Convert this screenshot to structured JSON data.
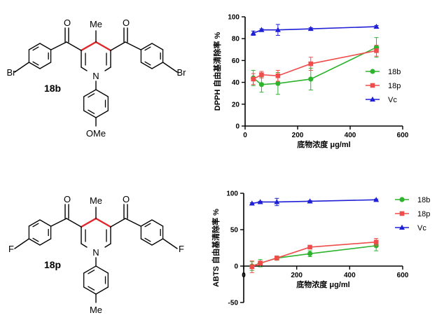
{
  "molecules": [
    {
      "id": "18b",
      "label": "18b",
      "methyl": "Me",
      "left_sub": "Br",
      "right_sub": "Br",
      "n_label": "N",
      "o1": "O",
      "o2": "O",
      "aryl_sub": "OMe"
    },
    {
      "id": "18p",
      "label": "18p",
      "methyl": "Me",
      "left_sub": "F",
      "right_sub": "F",
      "n_label": "N",
      "o1": "O",
      "o2": "O",
      "aryl_sub": "Me"
    }
  ],
  "colors": {
    "highlight_bond": "#e0262b",
    "series_18b": "#2db32d",
    "series_18p": "#ef4c4c",
    "series_vc": "#1f1fd6"
  },
  "chart_data": [
    {
      "type": "line",
      "ylabel": "DPPH 自由基清除率 %",
      "xlabel": "底物浓度 μg/ml",
      "xlim": [
        0,
        600
      ],
      "ylim": [
        0,
        100
      ],
      "xticks": [
        0,
        200,
        400,
        600
      ],
      "yticks": [
        0,
        20,
        40,
        60,
        80,
        100
      ],
      "legend_position": "right",
      "x": [
        31.25,
        62.5,
        125,
        250,
        500
      ],
      "series": [
        {
          "name": "18b",
          "marker": "circle",
          "values": [
            44,
            38,
            39,
            43,
            72
          ],
          "errors": [
            7,
            7,
            10,
            10,
            9
          ]
        },
        {
          "name": "18p",
          "marker": "square",
          "values": [
            43,
            47,
            46,
            57,
            69
          ],
          "errors": [
            5,
            3,
            5,
            6,
            5
          ]
        },
        {
          "name": "Vc",
          "marker": "triangle",
          "values": [
            85,
            88,
            88,
            89,
            91
          ],
          "errors": [
            2,
            1,
            5,
            1,
            1
          ]
        }
      ]
    },
    {
      "type": "line",
      "ylabel": "ABTS 自由基清除率 %",
      "xlabel": "底物浓度 μg/ml",
      "xlim": [
        0,
        600
      ],
      "ylim": [
        -50,
        100
      ],
      "xticks": [
        0,
        200,
        400,
        600
      ],
      "yticks": [
        -50,
        0,
        50,
        100
      ],
      "legend_position": "right",
      "x": [
        31.25,
        62.5,
        125,
        250,
        500
      ],
      "series": [
        {
          "name": "18b",
          "marker": "circle",
          "values": [
            0,
            4,
            11,
            17,
            28
          ],
          "errors": [
            6,
            5,
            3,
            4,
            7
          ]
        },
        {
          "name": "18p",
          "marker": "square",
          "values": [
            -1,
            4,
            11,
            26,
            33
          ],
          "errors": [
            8,
            3,
            2,
            2,
            5
          ]
        },
        {
          "name": "Vc",
          "marker": "triangle",
          "values": [
            86,
            88,
            88,
            89,
            91
          ],
          "errors": [
            1,
            1,
            5,
            1,
            1
          ]
        }
      ]
    }
  ]
}
